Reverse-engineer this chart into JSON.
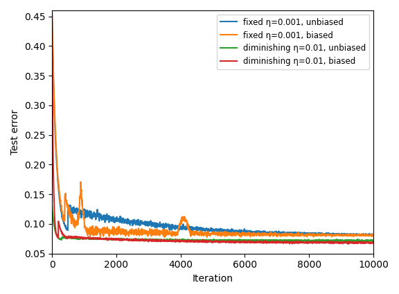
{
  "title": "",
  "xlabel": "Iteration",
  "ylabel": "Test error",
  "xlim": [
    0,
    10000
  ],
  "ylim": [
    0.05,
    0.46
  ],
  "yticks": [
    0.05,
    0.1,
    0.15,
    0.2,
    0.25,
    0.3,
    0.35,
    0.4,
    0.45
  ],
  "xticks": [
    0,
    2000,
    4000,
    6000,
    8000,
    10000
  ],
  "legend": [
    {
      "label": "fixed η=0.001, unbiased",
      "color": "#1f77b4"
    },
    {
      "label": "fixed η=0.001, biased",
      "color": "#ff7f0e"
    },
    {
      "label": "diminishing η=0.01, unbiased",
      "color": "#2ca02c"
    },
    {
      "label": "diminishing η=0.01, biased",
      "color": "#d62728"
    }
  ]
}
